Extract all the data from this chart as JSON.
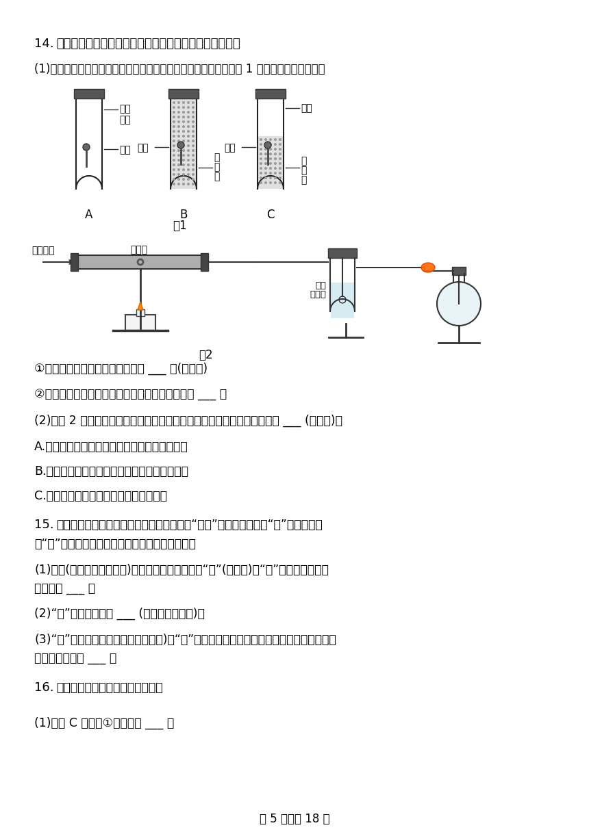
{
  "title_num": "14.",
  "title_text": "铁是世界生产量最大的金属，也是应用最为广泛的金属。",
  "q1_text": "(1)某位同学家里鐵锅表面发现有棕红色物质出现，对此他设计如图 1 实验探究鐵生锈条件：",
  "q1_1": "①说明鐵锈蚀需要与空气接触的是 ___ 。(填字母)",
  "q1_2": "②实验室可用盐酸除鐵锈，该反应的化学方程式是 ___ 。",
  "q2_text": "(2)如图 2 为实验室模拟练鐵的实验，下列关于该实验的说法中不正确的是 ___ (填字母)。",
  "q2_A": "A.先点酒精灯，再通一氧化碳，然后点酒精噴灯",
  "q2_B": "B.直玻璃管内黑色物质变红，澄清石灰水变浑浓",
  "q2_C": "C.练出的鐵与工业练鐵得到的鐵成分不同",
  "q15_num": "15.",
  "q15_line1": "春秋末期齐国的工艺官书《考工记》中载有“湅帛”的方法，即利用“灰”（草木灰）",
  "q15_line2": "和“履”（贝壳灰）混合加水所得液体来洗濦丝帛。",
  "q15_1a": "(1)贝壳(主要成分是碳酸钙)在高温条件下分解得到“履”(贝壳灰)，“履”的主要成分的物",
  "q15_1b": "质类别是 ___ 。",
  "q15_2": "(2)“履”与水的反应是 ___ (填基本反应类型)。",
  "q15_3a": "(3)“灰”（草木灰，主要成分是碳酸鉄)与“履”（贝壳灰）混合加水后发生反应生成白色沉淠",
  "q15_3b": "的化学方程式是 ___ 。",
  "q16_num": "16.",
  "q16_text": "实验室部分仗器和装置如图所示。",
  "q16_1": "(1)装置 C 中仗器①的名称是 ___ 。",
  "page_text": "第 5 页，共 18 页",
  "bg_color": "#ffffff",
  "text_color": "#000000",
  "line_color": "#333333"
}
